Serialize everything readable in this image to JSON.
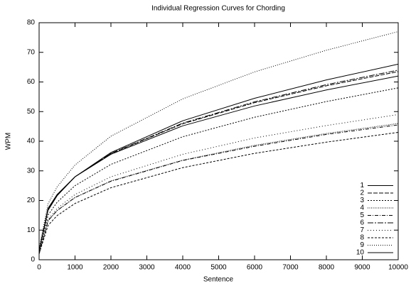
{
  "chart_data": {
    "type": "line",
    "title": "Individual Regression Curves for Chording",
    "x_label": "Sentence",
    "y_label": "WPM",
    "x": [
      0,
      250,
      500,
      1000,
      2000,
      4000,
      6000,
      8000,
      10000
    ],
    "series": [
      {
        "name": "1",
        "color": "#000000",
        "values": [
          3,
          16.7,
          21.6,
          28,
          36.2,
          46.9,
          54.5,
          60.7,
          66
        ]
      },
      {
        "name": "2",
        "color": "#000000",
        "values": [
          3,
          17.1,
          21.9,
          28,
          35.8,
          45.9,
          53.0,
          58.7,
          63.5
        ]
      },
      {
        "name": "3",
        "color": "#000000",
        "values": [
          3,
          15.1,
          19.4,
          25,
          32.2,
          41.5,
          48.1,
          53.4,
          58
        ]
      },
      {
        "name": "4",
        "color": "#000000",
        "values": [
          2,
          13.1,
          16.6,
          21,
          26.6,
          33.6,
          38.6,
          42.6,
          46
        ]
      },
      {
        "name": "5",
        "color": "#000000",
        "values": [
          2,
          13.2,
          16.6,
          21,
          26.5,
          33.5,
          38.3,
          42.3,
          45.5
        ]
      },
      {
        "name": "6",
        "color": "#000000",
        "values": [
          3,
          17.0,
          21.8,
          28,
          35.9,
          46.1,
          53.3,
          59.1,
          64
        ]
      },
      {
        "name": "7",
        "color": "#000000",
        "values": [
          2,
          13.6,
          17.3,
          22,
          28.0,
          35.6,
          41.1,
          45.3,
          49
        ]
      },
      {
        "name": "8",
        "color": "#000000",
        "values": [
          2,
          11.6,
          14.9,
          19,
          24.3,
          31.1,
          35.9,
          39.7,
          43
        ]
      },
      {
        "name": "9",
        "color": "#000000",
        "values": [
          4,
          18.9,
          24.6,
          32,
          41.7,
          54.3,
          63.4,
          70.7,
          77
        ]
      },
      {
        "name": "10",
        "color": "#000000",
        "values": [
          3,
          17.4,
          22.0,
          28,
          35.6,
          45.2,
          51.9,
          57.3,
          62
        ]
      }
    ],
    "xlim": [
      0,
      10000
    ],
    "xticks": [
      0,
      1000,
      2000,
      3000,
      4000,
      5000,
      6000,
      7000,
      8000,
      9000,
      10000
    ],
    "ylim": [
      0,
      80
    ],
    "yticks": [
      0,
      10,
      20,
      30,
      40,
      50,
      60,
      70,
      80
    ],
    "legend": "lower right",
    "grid": false
  }
}
